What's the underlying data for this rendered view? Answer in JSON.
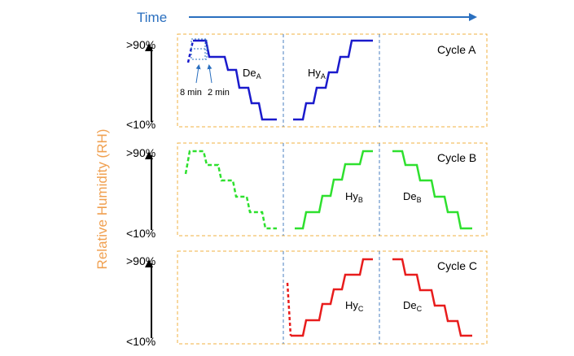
{
  "time_label": "Time",
  "y_axis_label": "Relative Humidity (RH)",
  "rh_high": ">90%",
  "rh_low": "<10%",
  "annotations": {
    "hold_long": "8 min",
    "hold_short": "2 min"
  },
  "colors": {
    "cycle_a": "#1a1acc",
    "cycle_b": "#2ee02e",
    "cycle_c": "#e81c1c",
    "box_border": "#f0b040",
    "divider": "#4a7fc0",
    "time_arrow": "#2a6fbf",
    "axis_label": "#f0a050"
  },
  "cycles": [
    {
      "name": "Cycle A",
      "phases": [
        {
          "label_main": "De",
          "label_sub": "A"
        },
        {
          "label_main": "Hy",
          "label_sub": "A"
        }
      ]
    },
    {
      "name": "Cycle B",
      "phases": [
        {
          "label_main": "Hy",
          "label_sub": "B"
        },
        {
          "label_main": "De",
          "label_sub": "B"
        }
      ]
    },
    {
      "name": "Cycle C",
      "phases": [
        {
          "label_main": "Hy",
          "label_sub": "C"
        },
        {
          "label_main": "De",
          "label_sub": "C"
        }
      ]
    }
  ]
}
